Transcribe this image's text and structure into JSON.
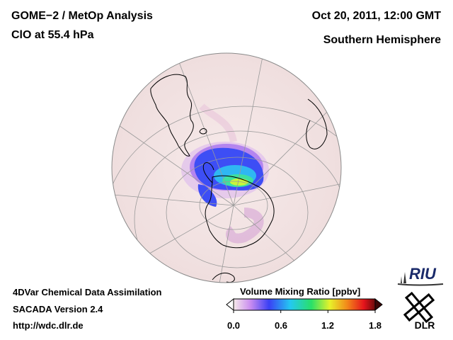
{
  "header": {
    "title_line1": "GOME−2 / MetOp Analysis",
    "title_line2": "ClO at 55.4 hPa",
    "date": "Oct 20, 2011, 12:00 GMT",
    "region": "Southern Hemisphere"
  },
  "footer": {
    "line1": "4DVar Chemical Data Assimilation",
    "line2": "SACADA Version 2.4",
    "url": "http://wdc.dlr.de"
  },
  "colorbar": {
    "label": "Volume Mixing Ratio [ppbv]",
    "ticks": [
      "0.0",
      "0.6",
      "1.2",
      "1.8"
    ],
    "range": [
      0.0,
      1.8
    ]
  },
  "logos": {
    "riu_text": "RIU",
    "dlr_text": "DLR"
  },
  "colors": {
    "background_field": "#f3e4e4",
    "coast": "#000000",
    "grid": "#9a9a9a"
  }
}
